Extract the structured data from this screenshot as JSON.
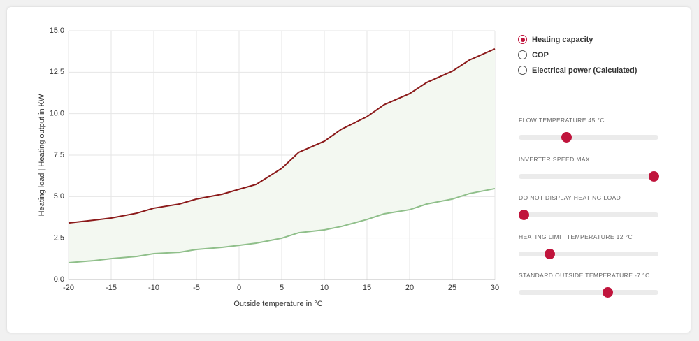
{
  "chart_data": {
    "type": "line",
    "x": [
      -20,
      -17,
      -15,
      -12,
      -10,
      -7,
      -5,
      -2,
      0,
      2,
      5,
      7,
      10,
      12,
      15,
      17,
      20,
      22,
      25,
      27,
      30
    ],
    "series": [
      {
        "color": "#8b1a1a",
        "values": [
          3.41,
          3.58,
          3.71,
          4.0,
          4.3,
          4.55,
          4.85,
          5.14,
          5.44,
          5.73,
          6.7,
          7.67,
          8.34,
          9.06,
          9.82,
          10.54,
          11.21,
          11.88,
          12.56,
          13.23,
          13.91
        ]
      },
      {
        "color": "#8fbf8a",
        "values": [
          1.01,
          1.14,
          1.26,
          1.39,
          1.56,
          1.64,
          1.81,
          1.94,
          2.06,
          2.19,
          2.49,
          2.82,
          2.99,
          3.2,
          3.62,
          3.96,
          4.21,
          4.55,
          4.85,
          5.18,
          5.48
        ]
      }
    ],
    "fill_between": "#f3f8f1",
    "xlim": [
      -20,
      30
    ],
    "xticks": [
      -20,
      -15,
      -10,
      -5,
      0,
      5,
      10,
      15,
      20,
      25,
      30
    ],
    "ylim": [
      0,
      15
    ],
    "yticks": [
      {
        "value": 0,
        "label": "0.0"
      },
      2.5,
      {
        "value": 5,
        "label": "5.0"
      },
      7.5,
      {
        "value": 10,
        "label": "10.0"
      },
      12.5,
      {
        "value": 15,
        "label": "15.0"
      }
    ],
    "grid": true,
    "xlabel": "Outside temperature in °C",
    "ylabel": "Heating load | Heating output in KW"
  },
  "controls": {
    "radios": [
      {
        "label": "Heating capacity",
        "selected": true
      },
      {
        "label": "COP",
        "selected": false
      },
      {
        "label": "Electrical power (Calculated)",
        "selected": false
      }
    ],
    "sliders": [
      {
        "label": "FLOW TEMPERATURE 45 °C"
      },
      {
        "label": "INVERTER SPEED MAX"
      },
      {
        "label": "DO NOT DISPLAY HEATING LOAD"
      },
      {
        "label": "HEATING LIMIT TEMPERATURE 12 °C"
      },
      {
        "label": "STANDARD OUTSIDE TEMPERATURE -7 °C"
      }
    ]
  }
}
